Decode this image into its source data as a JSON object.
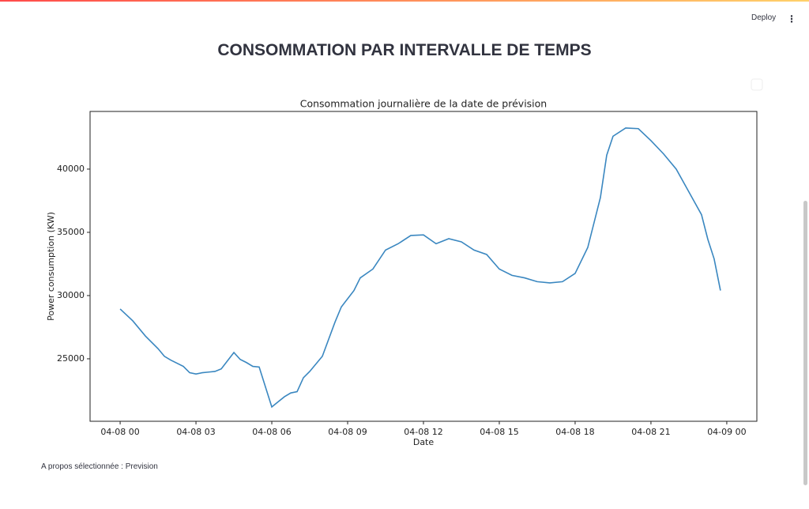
{
  "header": {
    "button": "Deploy"
  },
  "page_title": "CONSOMMATION PAR INTERVALLE DE TEMPS",
  "chart_data": {
    "type": "line",
    "title": "Consommation journalière de la date de prévision",
    "x_label": "Date",
    "y_label": "Power consumption (KW)",
    "x": [
      0,
      0.5,
      1,
      1.5,
      1.75,
      2,
      2.5,
      2.75,
      3,
      3.25,
      3.5,
      3.75,
      4,
      4.5,
      4.75,
      5,
      5.25,
      5.5,
      6,
      6.25,
      6.5,
      6.75,
      7,
      7.25,
      7.5,
      8,
      8.5,
      8.75,
      9,
      9.25,
      9.5,
      10,
      10.5,
      11,
      11.5,
      12,
      12.5,
      13,
      13.5,
      14,
      14.5,
      15,
      15.5,
      16,
      16.5,
      17,
      17.5,
      18,
      18.5,
      19,
      19.25,
      19.5,
      20,
      20.5,
      21,
      21.5,
      22,
      22.5,
      23,
      23.25,
      23.5,
      23.75
    ],
    "series": [
      {
        "name": "Power consumption",
        "color": "#3a87c0",
        "values": [
          28940,
          28000,
          26800,
          25800,
          25200,
          24900,
          24400,
          23900,
          23800,
          23900,
          23950,
          24000,
          24200,
          25500,
          24950,
          24700,
          24400,
          24350,
          21190,
          21600,
          22000,
          22300,
          22400,
          23500,
          24000,
          25200,
          27900,
          29100,
          29750,
          30400,
          31400,
          32100,
          33600,
          34100,
          34750,
          34800,
          34100,
          34500,
          34250,
          33600,
          33250,
          32100,
          31600,
          31400,
          31100,
          31000,
          31100,
          31750,
          33800,
          37750,
          41100,
          42600,
          43250,
          43200,
          42250,
          41200,
          40000,
          38200,
          36400,
          34450,
          32900,
          30400
        ]
      }
    ],
    "xlim": [
      -1.19,
      25.19
    ],
    "ylim": [
      20060,
      44560
    ],
    "xticks": [
      {
        "value": 0,
        "label": "04-08 00"
      },
      {
        "value": 3,
        "label": "04-08 03"
      },
      {
        "value": 6,
        "label": "04-08 06"
      },
      {
        "value": 9,
        "label": "04-08 09"
      },
      {
        "value": 12,
        "label": "04-08 12"
      },
      {
        "value": 15,
        "label": "04-08 15"
      },
      {
        "value": 18,
        "label": "04-08 18"
      },
      {
        "value": 21,
        "label": "04-08 21"
      },
      {
        "value": 24,
        "label": "04-09 00"
      }
    ],
    "yticks": [
      25000,
      30000,
      35000,
      40000
    ],
    "grid": false
  },
  "footer": "A propos sélectionnée : Prevision"
}
